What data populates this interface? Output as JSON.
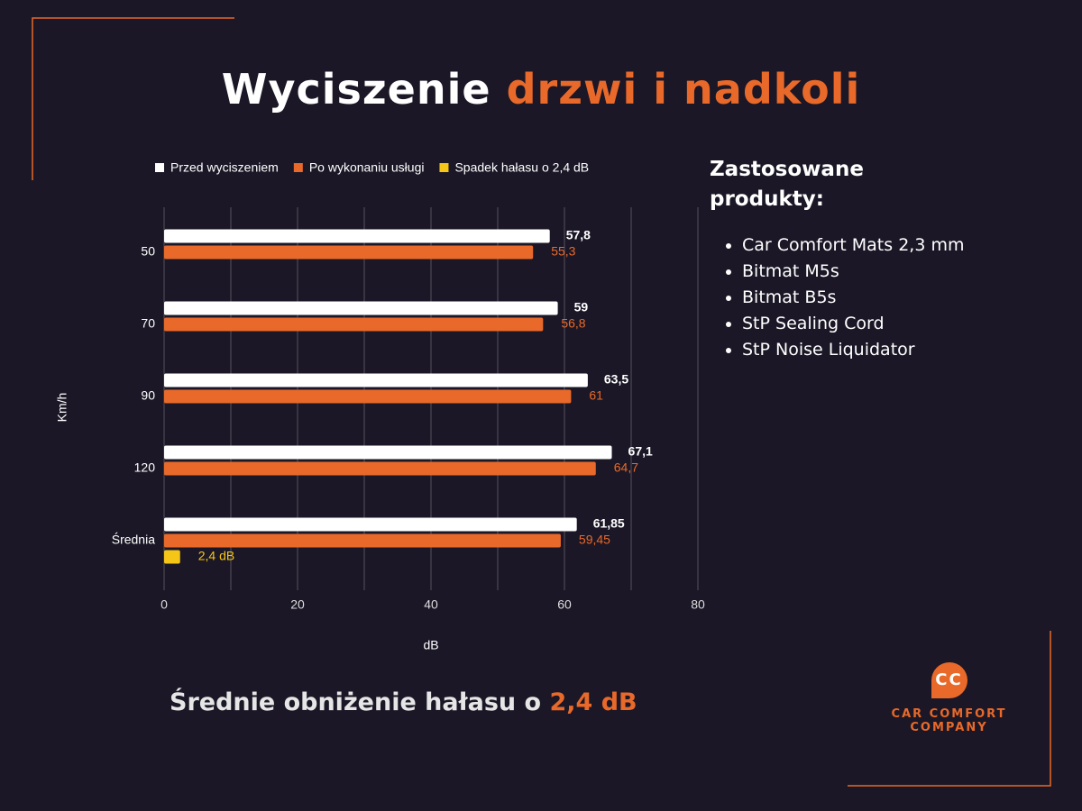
{
  "header": {
    "title": [
      "Wyciszenie",
      "drzwi i nadkoli"
    ]
  },
  "chart_data": {
    "type": "bar",
    "orientation": "horizontal",
    "xlabel": "dB",
    "ylabel": "Km/h",
    "categories": [
      "50",
      "70",
      "90",
      "120",
      "Średnia"
    ],
    "series": [
      {
        "name": "Przed wyciszeniem",
        "color": "#ffffff",
        "values": [
          57.8,
          59,
          63.5,
          67.1,
          61.85
        ],
        "value_labels": [
          "57,8",
          "59",
          "63,5",
          "67,1",
          "61,85"
        ]
      },
      {
        "name": "Po wykonaniu usługi",
        "color": "#e8692a",
        "values": [
          55.3,
          56.8,
          61,
          64.7,
          59.45
        ],
        "value_labels": [
          "55,3",
          "56,8",
          "61",
          "64,7",
          "59,45"
        ]
      },
      {
        "name": "Spadek hałasu o 2,4 dB",
        "color": "#f5c518",
        "values": [
          null,
          null,
          null,
          null,
          2.4
        ],
        "value_labels": [
          null,
          null,
          null,
          null,
          "2,4 dB"
        ]
      }
    ],
    "xlim": [
      0,
      80
    ],
    "xticks": [
      0,
      20,
      40,
      60,
      80
    ],
    "minor_xticks": [
      10,
      30,
      50,
      70
    ],
    "grid": true,
    "legend": "top"
  },
  "products": {
    "heading": "Zastosowane produkty:",
    "items": [
      "Car Comfort Mats 2,3 mm",
      "Bitmat M5s",
      "Bitmat B5s",
      "StP Sealing Cord",
      "StP Noise Liquidator"
    ]
  },
  "summary": [
    "Średnie obniżenie hałasu o",
    "2,4 dB"
  ],
  "logo": {
    "mark": "CC",
    "line1": "CAR COMFORT",
    "line2": "COMPANY"
  }
}
